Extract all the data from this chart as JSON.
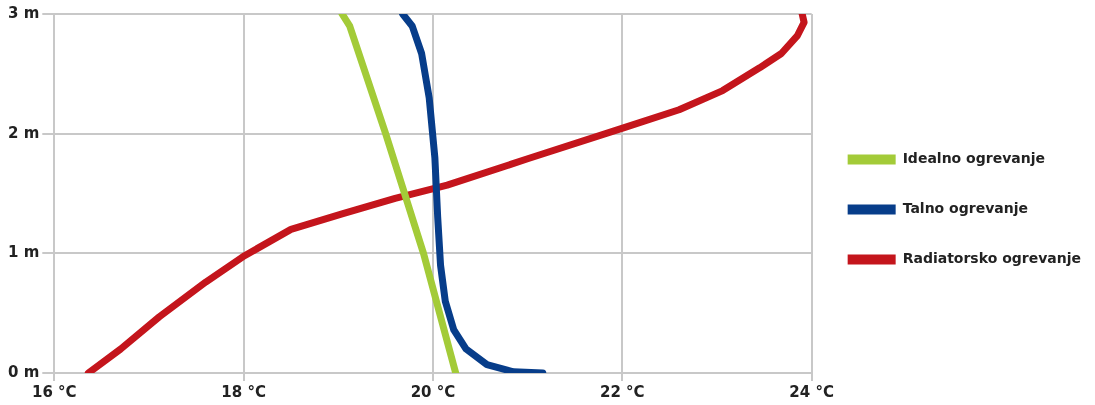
{
  "chart_data": {
    "type": "line",
    "xlim": [
      16,
      24
    ],
    "ylim": [
      0,
      3
    ],
    "xticks": [
      {
        "value": 16,
        "label": "16 °C"
      },
      {
        "value": 18,
        "label": "18 °C"
      },
      {
        "value": 20,
        "label": "20 °C"
      },
      {
        "value": 22,
        "label": "22 °C"
      },
      {
        "value": 24,
        "label": "24 °C"
      }
    ],
    "yticks": [
      {
        "value": 0,
        "label": "0 m"
      },
      {
        "value": 1,
        "label": "1 m"
      },
      {
        "value": 2,
        "label": "2 m"
      },
      {
        "value": 3,
        "label": "3 m"
      }
    ],
    "grid": true,
    "legend": "right",
    "marker": "none",
    "line_style": "solid",
    "series": [
      {
        "name": "Idealno ogrevanje",
        "color": "#a3cb38",
        "x": [
          19.04,
          19.12,
          19.5,
          19.9,
          20.24
        ],
        "values": [
          3,
          2.9,
          2.0,
          1.0,
          0
        ]
      },
      {
        "name": "Talno ogrevanje",
        "color": "#073d8a",
        "x": [
          19.68,
          19.78,
          19.88,
          19.96,
          20.02,
          20.05,
          20.08,
          20.13,
          20.22,
          20.35,
          20.57,
          20.85,
          21.16
        ],
        "values": [
          3,
          2.9,
          2.67,
          2.3,
          1.8,
          1.3,
          0.9,
          0.6,
          0.36,
          0.2,
          0.07,
          0.01,
          0
        ]
      },
      {
        "name": "Radiatorsko ogrevanje",
        "color": "#c4151c",
        "x": [
          16.36,
          16.7,
          17.11,
          17.6,
          18.01,
          18.5,
          19.04,
          19.6,
          20.15,
          21.0,
          22.02,
          22.6,
          23.06,
          23.45,
          23.68,
          23.85,
          23.92,
          23.9
        ],
        "values": [
          0,
          0.2,
          0.47,
          0.76,
          0.98,
          1.2,
          1.33,
          1.46,
          1.57,
          1.79,
          2.05,
          2.2,
          2.36,
          2.55,
          2.67,
          2.82,
          2.93,
          3
        ]
      }
    ]
  }
}
